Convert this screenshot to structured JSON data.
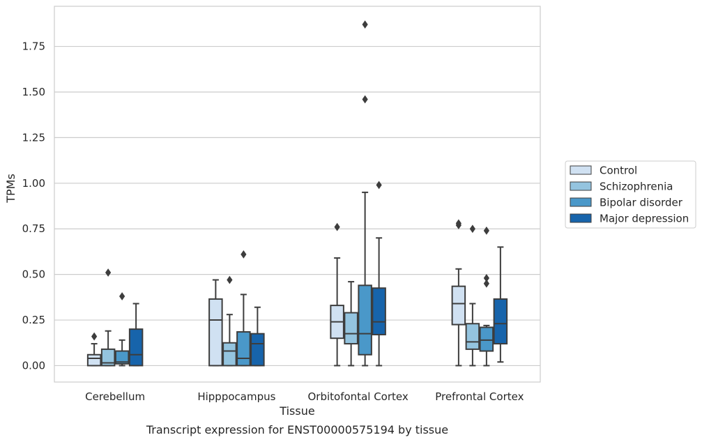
{
  "chart_data": {
    "type": "box",
    "title": "",
    "caption": "Transcript expression for ENST00000575194 by tissue",
    "xlabel": "Tissue",
    "ylabel": "TPMs",
    "ylim": [
      -0.09,
      1.97
    ],
    "yticks": [
      0.0,
      0.25,
      0.5,
      0.75,
      1.0,
      1.25,
      1.5,
      1.75
    ],
    "ytick_labels": [
      "0.00",
      "0.25",
      "0.50",
      "0.75",
      "1.00",
      "1.25",
      "1.50",
      "1.75"
    ],
    "grid": "horizontal",
    "legend_position": "right",
    "categories": [
      "Cerebellum",
      "Hipppocampus",
      "Orbitofontal Cortex",
      "Prefrontal Cortex"
    ],
    "series": [
      {
        "name": "Control",
        "color": "#d0e1f2",
        "boxes": [
          {
            "whisker_low": 0.0,
            "q1": 0.0,
            "median": 0.04,
            "q3": 0.06,
            "whisker_high": 0.12,
            "outliers": [
              0.16
            ]
          },
          {
            "whisker_low": 0.0,
            "q1": 0.0,
            "median": 0.25,
            "q3": 0.365,
            "whisker_high": 0.47,
            "outliers": []
          },
          {
            "whisker_low": 0.0,
            "q1": 0.15,
            "median": 0.24,
            "q3": 0.33,
            "whisker_high": 0.59,
            "outliers": [
              0.76
            ]
          },
          {
            "whisker_low": 0.0,
            "q1": 0.225,
            "median": 0.34,
            "q3": 0.435,
            "whisker_high": 0.53,
            "outliers": [
              0.77,
              0.78
            ]
          }
        ]
      },
      {
        "name": "Schizophrenia",
        "color": "#94c4df",
        "boxes": [
          {
            "whisker_low": 0.0,
            "q1": 0.0,
            "median": 0.015,
            "q3": 0.09,
            "whisker_high": 0.19,
            "outliers": [
              0.51
            ]
          },
          {
            "whisker_low": 0.0,
            "q1": 0.0,
            "median": 0.08,
            "q3": 0.125,
            "whisker_high": 0.28,
            "outliers": [
              0.47
            ]
          },
          {
            "whisker_low": 0.0,
            "q1": 0.12,
            "median": 0.175,
            "q3": 0.29,
            "whisker_high": 0.46,
            "outliers": []
          },
          {
            "whisker_low": 0.0,
            "q1": 0.09,
            "median": 0.13,
            "q3": 0.23,
            "whisker_high": 0.34,
            "outliers": [
              0.75
            ]
          }
        ]
      },
      {
        "name": "Bipolar disorder",
        "color": "#4a98c9",
        "boxes": [
          {
            "whisker_low": 0.0,
            "q1": 0.01,
            "median": 0.02,
            "q3": 0.08,
            "whisker_high": 0.14,
            "outliers": [
              0.38
            ]
          },
          {
            "whisker_low": 0.0,
            "q1": 0.0,
            "median": 0.04,
            "q3": 0.185,
            "whisker_high": 0.39,
            "outliers": [
              0.61
            ]
          },
          {
            "whisker_low": 0.0,
            "q1": 0.06,
            "median": 0.175,
            "q3": 0.44,
            "whisker_high": 0.95,
            "outliers": [
              1.46,
              1.87
            ]
          },
          {
            "whisker_low": 0.0,
            "q1": 0.08,
            "median": 0.14,
            "q3": 0.21,
            "whisker_high": 0.22,
            "outliers": [
              0.45,
              0.48,
              0.74
            ]
          }
        ]
      },
      {
        "name": "Major depression",
        "color": "#1764ab",
        "boxes": [
          {
            "whisker_low": 0.0,
            "q1": 0.0,
            "median": 0.06,
            "q3": 0.2,
            "whisker_high": 0.34,
            "outliers": []
          },
          {
            "whisker_low": 0.0,
            "q1": 0.0,
            "median": 0.12,
            "q3": 0.175,
            "whisker_high": 0.32,
            "outliers": []
          },
          {
            "whisker_low": 0.0,
            "q1": 0.17,
            "median": 0.24,
            "q3": 0.425,
            "whisker_high": 0.7,
            "outliers": [
              0.99
            ]
          },
          {
            "whisker_low": 0.02,
            "q1": 0.12,
            "median": 0.23,
            "q3": 0.365,
            "whisker_high": 0.65,
            "outliers": []
          }
        ]
      }
    ]
  }
}
